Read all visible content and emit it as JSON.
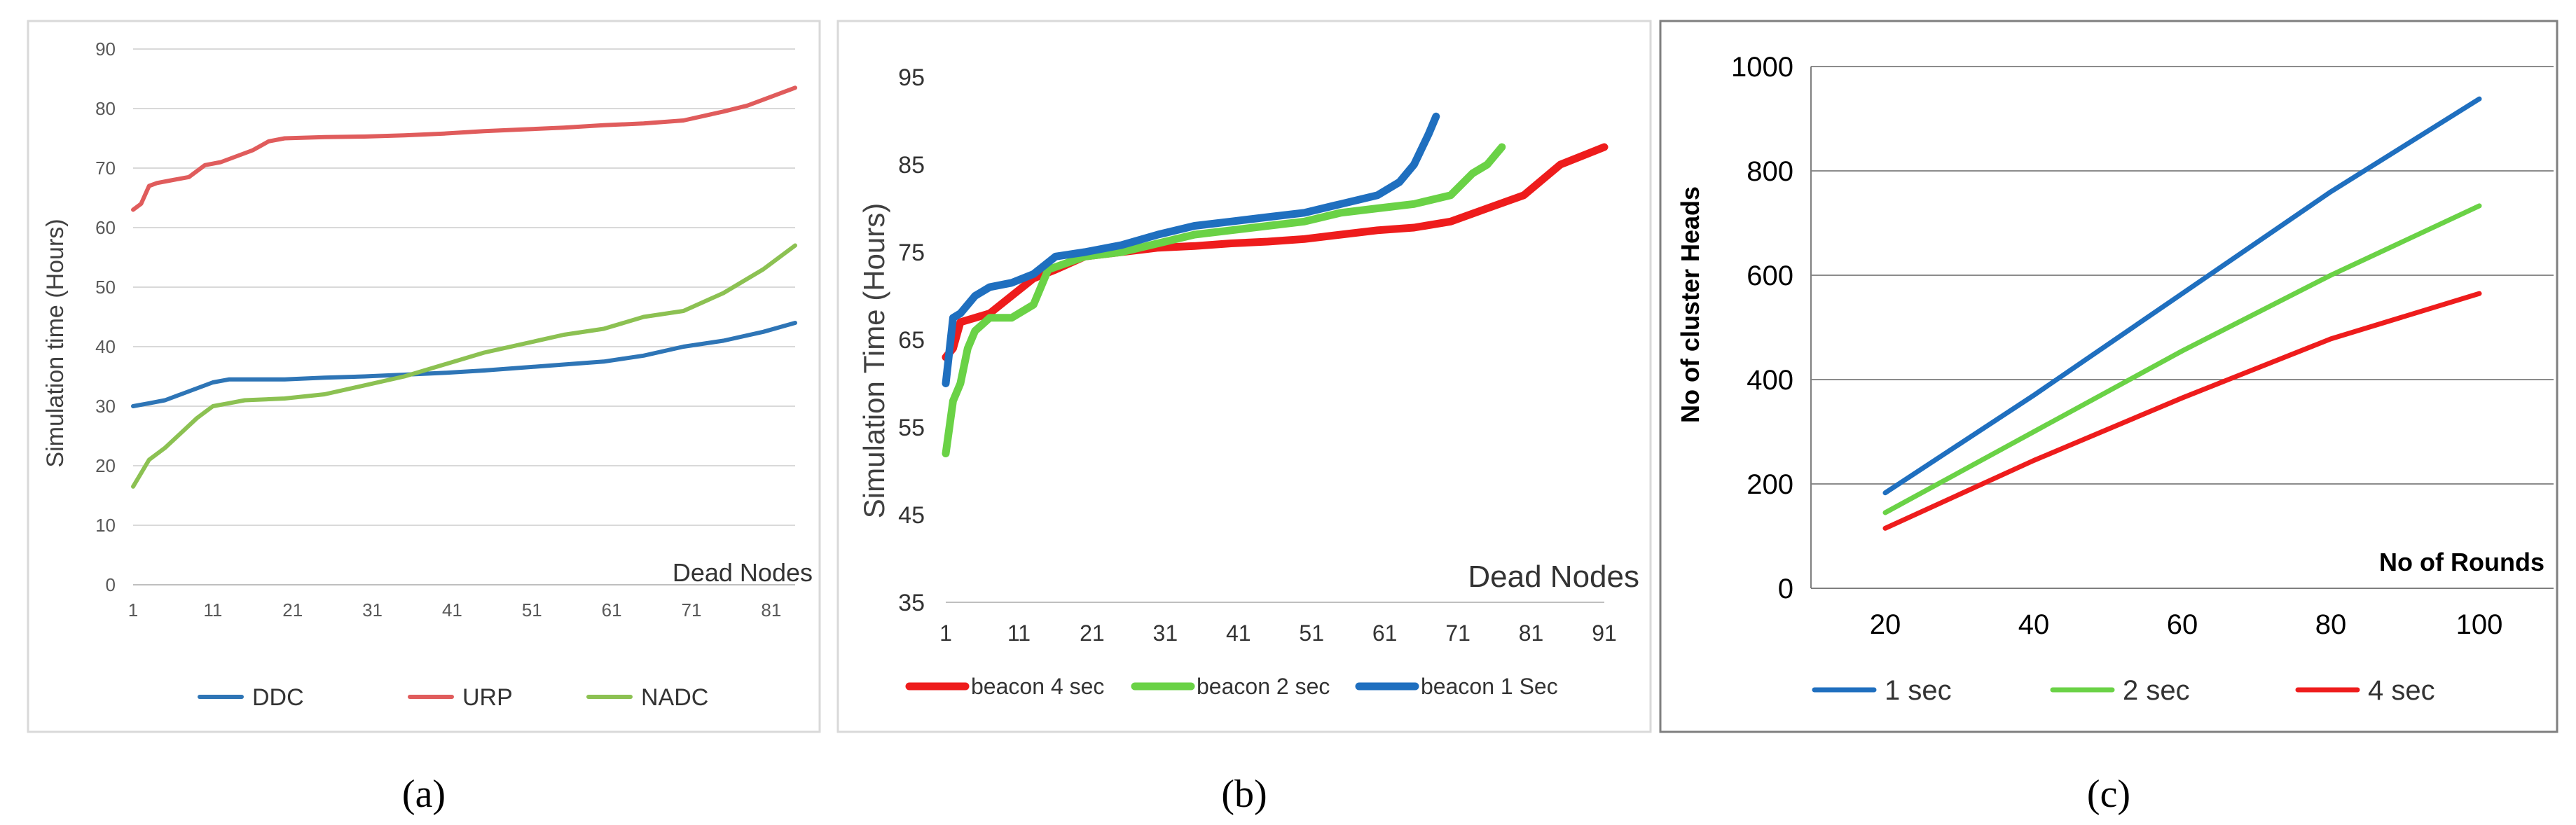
{
  "chart_data": [
    {
      "type": "line",
      "panel_label": "(a)",
      "title": "",
      "xlabel": "Dead Nodes",
      "ylabel": "Simulation time (Hours)",
      "xlim": [
        1,
        84
      ],
      "ylim": [
        0,
        90
      ],
      "xticks": [
        "1",
        "11",
        "21",
        "31",
        "41",
        "51",
        "61",
        "71",
        "81"
      ],
      "yticks": [
        "0",
        "10",
        "20",
        "30",
        "40",
        "50",
        "60",
        "70",
        "80",
        "90"
      ],
      "grid": true,
      "legend_position": "bottom",
      "series": [
        {
          "name": "DDC",
          "color": "#2e75b6",
          "x": [
            1,
            3,
            5,
            7,
            9,
            11,
            13,
            15,
            20,
            25,
            30,
            35,
            40,
            45,
            50,
            55,
            60,
            65,
            70,
            75,
            80,
            84
          ],
          "y": [
            30,
            30.5,
            31,
            32,
            33,
            34,
            34.5,
            34.5,
            34.5,
            34.8,
            35,
            35.3,
            35.6,
            36,
            36.5,
            37,
            37.5,
            38.5,
            40,
            41,
            42.5,
            44
          ]
        },
        {
          "name": "URP",
          "color": "#e05c5c",
          "x": [
            1,
            2,
            3,
            4,
            6,
            8,
            10,
            12,
            14,
            16,
            18,
            20,
            25,
            30,
            35,
            40,
            45,
            50,
            55,
            60,
            65,
            70,
            75,
            78,
            80,
            84
          ],
          "y": [
            63,
            64,
            67,
            67.5,
            68,
            68.5,
            70.5,
            71,
            72,
            73,
            74.5,
            75,
            75.2,
            75.3,
            75.5,
            75.8,
            76.2,
            76.5,
            76.8,
            77.2,
            77.5,
            78,
            79.5,
            80.5,
            81.5,
            83.5
          ]
        },
        {
          "name": "NADC",
          "color": "#8cc152",
          "x": [
            1,
            3,
            5,
            7,
            9,
            11,
            13,
            15,
            20,
            25,
            30,
            35,
            40,
            45,
            50,
            55,
            60,
            65,
            70,
            75,
            80,
            84
          ],
          "y": [
            16.5,
            21,
            23,
            25.5,
            28,
            30,
            30.5,
            31,
            31.3,
            32,
            33.5,
            35,
            37,
            39,
            40.5,
            42,
            43,
            45,
            46,
            49,
            53,
            57
          ]
        }
      ]
    },
    {
      "type": "line",
      "panel_label": "(b)",
      "title": "",
      "xlabel": "Dead Nodes",
      "ylabel": "Simulation Time (Hours)",
      "xlim": [
        1,
        91
      ],
      "ylim": [
        35,
        95
      ],
      "xticks": [
        "1",
        "11",
        "21",
        "31",
        "41",
        "51",
        "61",
        "71",
        "81",
        "91"
      ],
      "yticks": [
        "35",
        "45",
        "55",
        "65",
        "75",
        "85",
        "95"
      ],
      "grid": false,
      "legend_position": "bottom",
      "series": [
        {
          "name": "beacon 4 sec",
          "color": "#ee1c1c",
          "x": [
            1,
            2,
            3,
            5,
            7,
            10,
            13,
            16,
            20,
            25,
            30,
            35,
            40,
            45,
            50,
            55,
            60,
            65,
            70,
            75,
            80,
            85,
            88,
            91
          ],
          "y": [
            63,
            64,
            67,
            67.5,
            68,
            70,
            72,
            73,
            74.5,
            75,
            75.5,
            75.7,
            76,
            76.2,
            76.5,
            77,
            77.5,
            77.8,
            78.5,
            80,
            81.5,
            85,
            86,
            87
          ]
        },
        {
          "name": "beacon 2 sec",
          "color": "#6ad246",
          "x": [
            1,
            2,
            3,
            4,
            5,
            7,
            10,
            13,
            15,
            20,
            25,
            30,
            35,
            40,
            45,
            50,
            55,
            60,
            65,
            70,
            73,
            75,
            77
          ],
          "y": [
            52,
            58,
            60,
            64,
            66,
            67.5,
            67.5,
            69,
            73,
            74.5,
            75,
            76,
            77,
            77.5,
            78,
            78.5,
            79.5,
            80,
            80.5,
            81.5,
            84,
            85,
            87
          ]
        },
        {
          "name": "beacon 1 Sec",
          "color": "#1f6fbf",
          "x": [
            1,
            2,
            3,
            5,
            7,
            10,
            13,
            16,
            20,
            25,
            30,
            35,
            40,
            45,
            50,
            55,
            60,
            63,
            65,
            67,
            68
          ],
          "y": [
            60,
            67.5,
            68,
            70,
            71,
            71.5,
            72.5,
            74.5,
            75,
            75.8,
            77,
            78,
            78.5,
            79,
            79.5,
            80.5,
            81.5,
            83,
            85,
            88.5,
            90.5
          ]
        }
      ]
    },
    {
      "type": "line",
      "panel_label": "(c)",
      "title": "",
      "xlabel": "No of Rounds",
      "ylabel": "No of cluster Heads",
      "xlim": [
        10,
        110
      ],
      "ylim": [
        0,
        1000
      ],
      "xticks": [
        "20",
        "40",
        "60",
        "80",
        "100"
      ],
      "yticks": [
        "0",
        "200",
        "400",
        "600",
        "800",
        "1000"
      ],
      "grid": true,
      "legend_position": "bottom",
      "series": [
        {
          "name": "1 sec",
          "color": "#1f6fbf",
          "x": [
            20,
            40,
            60,
            80,
            100
          ],
          "y": [
            183,
            370,
            565,
            760,
            938
          ]
        },
        {
          "name": "2 sec",
          "color": "#6ad246",
          "x": [
            20,
            40,
            60,
            80,
            100
          ],
          "y": [
            145,
            300,
            455,
            600,
            733
          ]
        },
        {
          "name": "4 sec",
          "color": "#ee1c1c",
          "x": [
            20,
            40,
            60,
            80,
            100
          ],
          "y": [
            115,
            245,
            365,
            478,
            565
          ]
        }
      ]
    }
  ]
}
